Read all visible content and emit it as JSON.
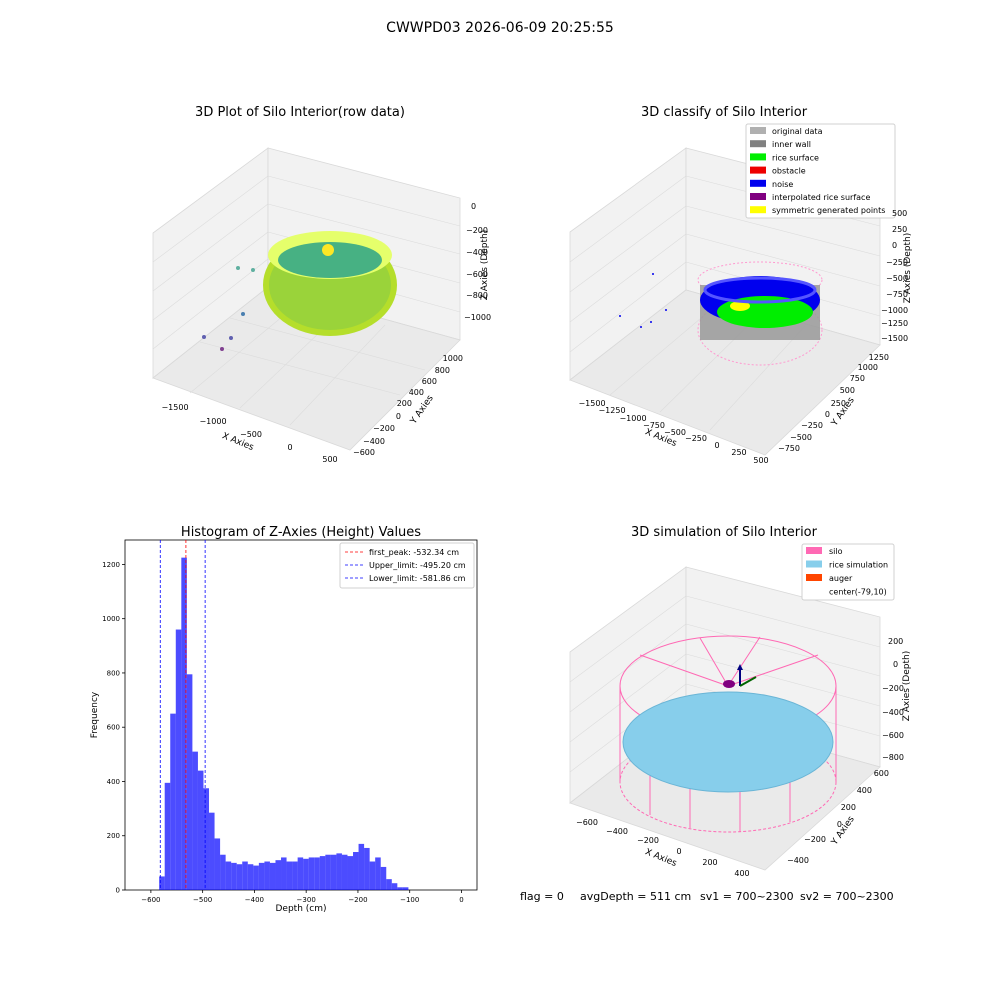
{
  "suptitle": "CWWPD03 2026-06-09 20:25:55",
  "panels": {
    "raw": {
      "title": "3D Plot of Silo Interior(row data)",
      "x_label": "X Axies",
      "y_label": "Y Axies",
      "z_label": "Z Axies (Depth)",
      "x_ticks": [
        "−1500",
        "−1000",
        "−500",
        "0",
        "500"
      ],
      "y_ticks": [
        "−600",
        "−400",
        "−200",
        "0",
        "200",
        "400",
        "600",
        "800",
        "1000"
      ],
      "z_ticks": [
        "0",
        "−200",
        "−400",
        "−600",
        "−800",
        "−1000"
      ]
    },
    "classify": {
      "title": "3D classify of Silo Interior",
      "x_label": "X Axies",
      "y_label": "Y Axies",
      "z_label": "Z Axies (Depth)",
      "x_ticks": [
        "−1500",
        "−1250",
        "−1000",
        "−750",
        "−500",
        "−250",
        "0",
        "250",
        "500"
      ],
      "y_ticks": [
        "−750",
        "−500",
        "−250",
        "0",
        "250",
        "500",
        "750",
        "1000",
        "1250"
      ],
      "z_ticks": [
        "500",
        "250",
        "0",
        "−250",
        "−500",
        "−750",
        "−1000",
        "−1250",
        "−1500"
      ],
      "legend": [
        {
          "label": "original data",
          "color": "#b0b0b0"
        },
        {
          "label": "inner wall",
          "color": "#808080"
        },
        {
          "label": "rice surface",
          "color": "#00ee00"
        },
        {
          "label": "obstacle",
          "color": "#ee0000"
        },
        {
          "label": "noise",
          "color": "#0000ee"
        },
        {
          "label": "interpolated rice surface",
          "color": "#800080"
        },
        {
          "label": "symmetric generated points",
          "color": "#ffff00"
        }
      ]
    },
    "simulation": {
      "title": "3D simulation of Silo Interior",
      "x_label": "X Axies",
      "y_label": "Y Axies",
      "z_label": "Z Axies (Depth)",
      "x_ticks": [
        "−600",
        "−400",
        "−200",
        "0",
        "200",
        "400"
      ],
      "y_ticks": [
        "−400",
        "−200",
        "0",
        "200",
        "400",
        "600"
      ],
      "z_ticks": [
        "200",
        "0",
        "−200",
        "−400",
        "−600",
        "−800"
      ],
      "legend": [
        {
          "label": "silo",
          "color": "#ff69b4"
        },
        {
          "label": "rice simulation",
          "color": "#87ceeb"
        },
        {
          "label": "auger",
          "color": "#ff4500"
        },
        {
          "label": "center(-79,10)",
          "color": ""
        }
      ]
    }
  },
  "footer": {
    "flag": "flag = 0",
    "avg": "avgDepth = 511 cm",
    "sv1": "sv1 = 700~2300",
    "sv2": "sv2 = 700~2300"
  },
  "chart_data": {
    "type": "bar",
    "title": "Histogram of Z-Axies (Height) Values",
    "xlabel": "Depth (cm)",
    "ylabel": "Frequency",
    "xlim": [
      -650,
      30
    ],
    "ylim": [
      0,
      1290
    ],
    "x_ticks": [
      -600,
      -500,
      -400,
      -300,
      -200,
      -100,
      0
    ],
    "y_ticks": [
      0,
      200,
      400,
      600,
      800,
      1000,
      1200
    ],
    "bar_color": "#0000ff",
    "bin_start": -584,
    "bin_width": 10.7,
    "values": [
      50,
      395,
      650,
      960,
      1225,
      795,
      510,
      440,
      375,
      285,
      190,
      130,
      105,
      100,
      95,
      105,
      95,
      90,
      100,
      105,
      100,
      110,
      120,
      105,
      105,
      120,
      115,
      120,
      120,
      125,
      130,
      130,
      135,
      130,
      125,
      140,
      170,
      155,
      105,
      120,
      85,
      40,
      25,
      10,
      10
    ],
    "vlines": [
      {
        "label": "first_peak: -532.34 cm",
        "x": -532.34,
        "color": "#ff0000"
      },
      {
        "label": "Upper_limit: -495.20 cm",
        "x": -495.2,
        "color": "#0000ff"
      },
      {
        "label": "Lower_limit: -581.86 cm",
        "x": -581.86,
        "color": "#0000ff"
      }
    ]
  }
}
